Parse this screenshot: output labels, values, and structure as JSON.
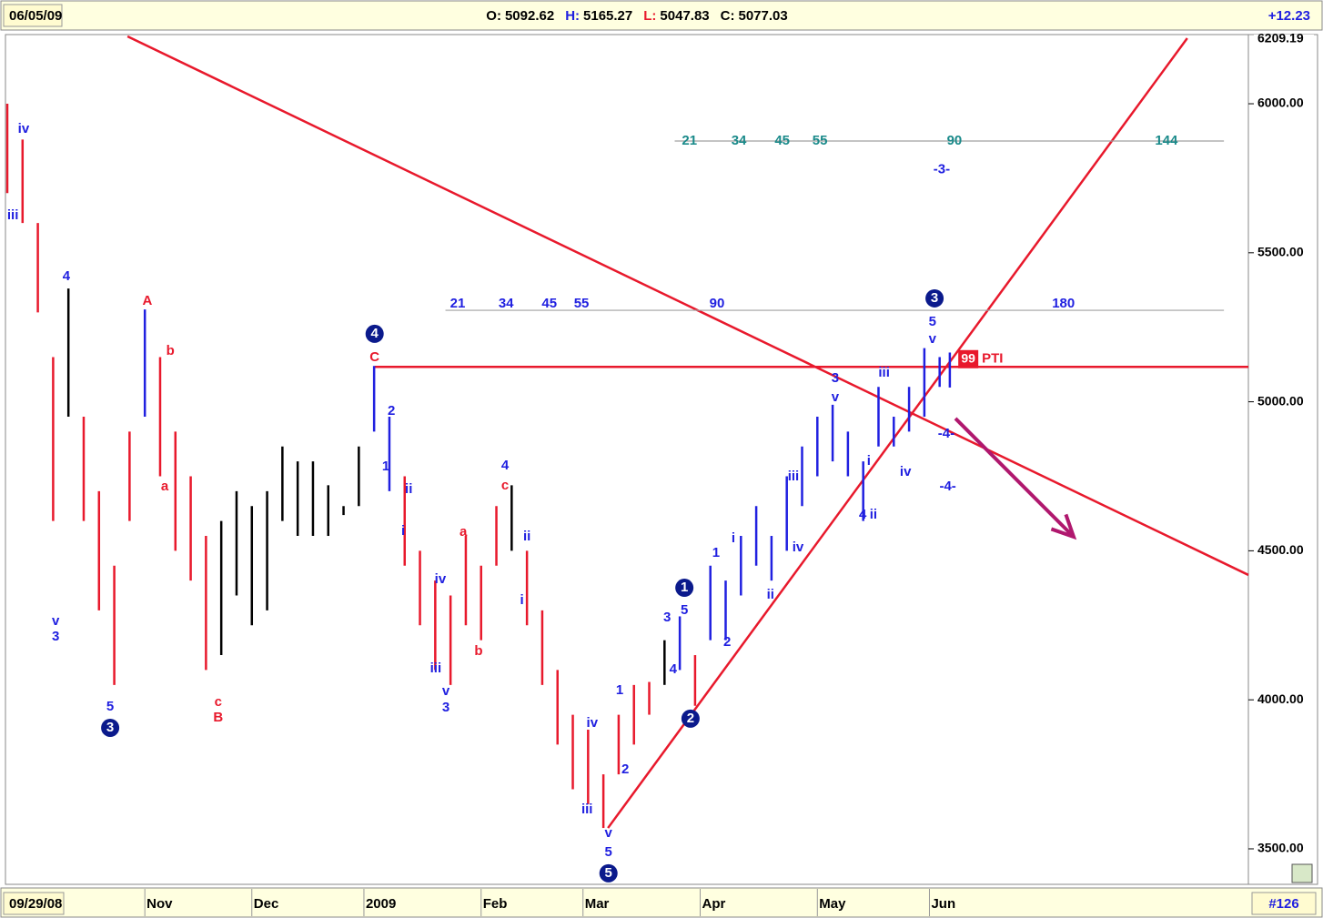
{
  "header": {
    "date": "06/05/09",
    "ohlc": [
      {
        "label": "O:",
        "value": "5092.62"
      },
      {
        "label": "H:",
        "value": "5165.27"
      },
      {
        "label": "L:",
        "value": "5047.83"
      },
      {
        "label": "C:",
        "value": "5077.03"
      }
    ],
    "change": "+12.23"
  },
  "footer": {
    "start_date": "09/29/08",
    "bar_count": "#126"
  },
  "chart_data": {
    "type": "ohlc",
    "last_high_label": "6209.19",
    "x": [
      0,
      3,
      6,
      9,
      12,
      15,
      18,
      21,
      24,
      27,
      30,
      33,
      36,
      39,
      42,
      45,
      48,
      51,
      54,
      57,
      60,
      63,
      66,
      69,
      72,
      75,
      78,
      81,
      84,
      87,
      90,
      93,
      96,
      99,
      102,
      105,
      108,
      111,
      114,
      117,
      120,
      123,
      126,
      129,
      132,
      135,
      138,
      141,
      144,
      147,
      150,
      153,
      156,
      159,
      162,
      165,
      168,
      171,
      174,
      177,
      180,
      183,
      185
    ],
    "high": [
      6000,
      5880,
      5600,
      5150,
      5380,
      4950,
      4700,
      4450,
      4900,
      5310,
      5150,
      4900,
      4750,
      4550,
      4600,
      4700,
      4650,
      4700,
      4850,
      4800,
      4800,
      4720,
      4650,
      4850,
      5120,
      4950,
      4750,
      4500,
      4400,
      4350,
      4550,
      4450,
      4650,
      4720,
      4500,
      4300,
      4100,
      3950,
      3900,
      3750,
      3950,
      4050,
      4060,
      4200,
      4280,
      4150,
      4450,
      4400,
      4550,
      4650,
      4550,
      4750,
      4850,
      4950,
      4990,
      4900,
      4800,
      5050,
      4950,
      5050,
      5180,
      5150,
      5165.27
    ],
    "low": [
      5700,
      5600,
      5300,
      4600,
      4950,
      4600,
      4300,
      4050,
      4600,
      4950,
      4750,
      4500,
      4400,
      4100,
      4150,
      4350,
      4250,
      4300,
      4600,
      4550,
      4550,
      4550,
      4620,
      4650,
      4900,
      4700,
      4450,
      4250,
      4100,
      4050,
      4250,
      4200,
      4450,
      4500,
      4250,
      4050,
      3850,
      3700,
      3650,
      3570,
      3750,
      3850,
      3950,
      4050,
      4100,
      3980,
      4200,
      4200,
      4350,
      4450,
      4400,
      4500,
      4650,
      4750,
      4800,
      4750,
      4600,
      4850,
      4850,
      4900,
      4950,
      5050,
      5047.83
    ],
    "colors": [
      "#e8192c",
      "#e8192c",
      "#e8192c",
      "#e8192c",
      "#000000",
      "#e8192c",
      "#e8192c",
      "#e8192c",
      "#e8192c",
      "#2020e0",
      "#e8192c",
      "#e8192c",
      "#e8192c",
      "#e8192c",
      "#000000",
      "#000000",
      "#000000",
      "#000000",
      "#000000",
      "#000000",
      "#000000",
      "#000000",
      "#000000",
      "#000000",
      "#2020e0",
      "#2020e0",
      "#e8192c",
      "#e8192c",
      "#e8192c",
      "#e8192c",
      "#e8192c",
      "#e8192c",
      "#e8192c",
      "#000000",
      "#e8192c",
      "#e8192c",
      "#e8192c",
      "#e8192c",
      "#e8192c",
      "#e8192c",
      "#e8192c",
      "#e8192c",
      "#e8192c",
      "#000000",
      "#2020e0",
      "#e8192c",
      "#2020e0",
      "#2020e0",
      "#2020e0",
      "#2020e0",
      "#2020e0",
      "#2020e0",
      "#2020e0",
      "#2020e0",
      "#2020e0",
      "#2020e0",
      "#2020e0",
      "#2020e0",
      "#2020e0",
      "#2020e0",
      "#2020e0",
      "#2020e0",
      "#2020e0"
    ],
    "xlim": [
      0,
      243.6
    ],
    "ylim": [
      3387,
      6226
    ],
    "xticks": [
      {
        "value": 27,
        "label": "Nov"
      },
      {
        "value": 48,
        "label": "Dec"
      },
      {
        "value": 70,
        "label": "2009"
      },
      {
        "value": 93,
        "label": "Feb"
      },
      {
        "value": 113,
        "label": "Mar"
      },
      {
        "value": 136,
        "label": "Apr"
      },
      {
        "value": 159,
        "label": "May"
      },
      {
        "value": 181,
        "label": "Jun"
      }
    ],
    "yticks": [
      {
        "value": 3500,
        "label": "3500.00"
      },
      {
        "value": 4000,
        "label": "4000.00"
      },
      {
        "value": 4500,
        "label": "4500.00"
      },
      {
        "value": 5000,
        "label": "5000.00"
      },
      {
        "value": 5500,
        "label": "5500.00"
      },
      {
        "value": 6000,
        "label": "6000.00"
      }
    ],
    "trendlines": [
      {
        "color": "#e8192c",
        "x1": 23.6,
        "v1": 6226,
        "x2": 243.6,
        "v2": 4419
      },
      {
        "color": "#e8192c",
        "x1": 117.9,
        "v1": 3570,
        "x2": 231.6,
        "v2": 6220
      },
      {
        "color": "#e8192c",
        "x1": 72.1,
        "v1": 5117,
        "x2": 243.6,
        "v2": 5117
      },
      {
        "color": "#a0a0a0",
        "x1": 131,
        "v1": 5875,
        "x2": 238.8,
        "v2": 5875
      },
      {
        "color": "#a0a0a0",
        "x1": 86,
        "v1": 5307,
        "x2": 238.8,
        "v2": 5307
      }
    ],
    "arrow": {
      "color": "#b0186e",
      "x1": 186.1,
      "v1": 4944,
      "x2": 209.3,
      "v2": 4547
    },
    "pti": {
      "value": "99",
      "label": "PTI",
      "x": 188.8,
      "v": 5143
    },
    "annotations": [
      {
        "text": "iv",
        "x": 3.2,
        "v": 5915,
        "color": "#2020e0"
      },
      {
        "text": "iii",
        "x": 1.1,
        "v": 5625,
        "color": "#2020e0"
      },
      {
        "text": "4",
        "x": 11.6,
        "v": 5420,
        "color": "#2020e0"
      },
      {
        "text": "v",
        "x": 9.5,
        "v": 4263,
        "color": "#2020e0"
      },
      {
        "text": "3",
        "x": 9.5,
        "v": 4211,
        "color": "#2020e0"
      },
      {
        "text": "5",
        "x": 20.2,
        "v": 3976,
        "color": "#2020e0"
      },
      {
        "text": "3",
        "x": 20.2,
        "v": 3906,
        "color": "#0b1a8c",
        "circled": true
      },
      {
        "text": "A",
        "x": 27.5,
        "v": 5338,
        "color": "#e8192c"
      },
      {
        "text": "b",
        "x": 32,
        "v": 5170,
        "color": "#e8192c"
      },
      {
        "text": "a",
        "x": 30.9,
        "v": 4715,
        "color": "#e8192c"
      },
      {
        "text": "c",
        "x": 41.4,
        "v": 3992,
        "color": "#e8192c"
      },
      {
        "text": "B",
        "x": 41.4,
        "v": 3940,
        "color": "#e8192c"
      },
      {
        "text": "4",
        "x": 72.1,
        "v": 5228,
        "color": "#0b1a8c",
        "circled": true
      },
      {
        "text": "C",
        "x": 72.1,
        "v": 5149,
        "color": "#e8192c"
      },
      {
        "text": "2",
        "x": 75.4,
        "v": 4968,
        "color": "#2020e0"
      },
      {
        "text": "1",
        "x": 74.3,
        "v": 4782,
        "color": "#2020e0"
      },
      {
        "text": "ii",
        "x": 78.8,
        "v": 4706,
        "color": "#2020e0"
      },
      {
        "text": "i",
        "x": 77.7,
        "v": 4565,
        "color": "#2020e0"
      },
      {
        "text": "a",
        "x": 89.5,
        "v": 4562,
        "color": "#e8192c"
      },
      {
        "text": "b",
        "x": 92.5,
        "v": 4163,
        "color": "#e8192c"
      },
      {
        "text": "iv",
        "x": 85,
        "v": 4404,
        "color": "#2020e0"
      },
      {
        "text": "iii",
        "x": 84.1,
        "v": 4104,
        "color": "#2020e0"
      },
      {
        "text": "v",
        "x": 86.1,
        "v": 4028,
        "color": "#2020e0"
      },
      {
        "text": "3",
        "x": 86.1,
        "v": 3973,
        "color": "#2020e0"
      },
      {
        "text": "4",
        "x": 97.7,
        "v": 4785,
        "color": "#2020e0"
      },
      {
        "text": "c",
        "x": 97.7,
        "v": 4718,
        "color": "#e8192c"
      },
      {
        "text": "ii",
        "x": 102,
        "v": 4547,
        "color": "#2020e0"
      },
      {
        "text": "i",
        "x": 101,
        "v": 4333,
        "color": "#2020e0"
      },
      {
        "text": "iv",
        "x": 114.8,
        "v": 3921,
        "color": "#2020e0"
      },
      {
        "text": "iii",
        "x": 113.8,
        "v": 3631,
        "color": "#2020e0"
      },
      {
        "text": "v",
        "x": 118,
        "v": 3552,
        "color": "#2020e0"
      },
      {
        "text": "5",
        "x": 118,
        "v": 3488,
        "color": "#2020e0"
      },
      {
        "text": "5",
        "x": 118,
        "v": 3418,
        "color": "#0b1a8c",
        "circled": true
      },
      {
        "text": "1",
        "x": 120.2,
        "v": 4031,
        "color": "#2020e0"
      },
      {
        "text": "2",
        "x": 121.3,
        "v": 3766,
        "color": "#2020e0"
      },
      {
        "text": "1",
        "x": 132.9,
        "v": 4376,
        "color": "#0b1a8c",
        "circled": true
      },
      {
        "text": "5",
        "x": 132.9,
        "v": 4300,
        "color": "#2020e0"
      },
      {
        "text": "3",
        "x": 129.5,
        "v": 4275,
        "color": "#2020e0"
      },
      {
        "text": "4",
        "x": 130.7,
        "v": 4101,
        "color": "#2020e0"
      },
      {
        "text": "2",
        "x": 134.1,
        "v": 3937,
        "color": "#0b1a8c",
        "circled": true
      },
      {
        "text": "1",
        "x": 139.1,
        "v": 4492,
        "color": "#2020e0"
      },
      {
        "text": "2",
        "x": 141.3,
        "v": 4193,
        "color": "#2020e0"
      },
      {
        "text": "i",
        "x": 142.5,
        "v": 4541,
        "color": "#2020e0"
      },
      {
        "text": "ii",
        "x": 149.8,
        "v": 4352,
        "color": "#2020e0"
      },
      {
        "text": "iii",
        "x": 154.3,
        "v": 4749,
        "color": "#2020e0"
      },
      {
        "text": "iv",
        "x": 155.2,
        "v": 4511,
        "color": "#2020e0"
      },
      {
        "text": "3",
        "x": 162.5,
        "v": 5078,
        "color": "#2020e0"
      },
      {
        "text": "v",
        "x": 162.5,
        "v": 5014,
        "color": "#2020e0"
      },
      {
        "text": "4",
        "x": 167.9,
        "v": 4620,
        "color": "#2020e0"
      },
      {
        "text": "ii",
        "x": 170,
        "v": 4620,
        "color": "#2020e0"
      },
      {
        "text": "i",
        "x": 169.1,
        "v": 4801,
        "color": "#2020e0"
      },
      {
        "text": "iii",
        "x": 172.1,
        "v": 5097,
        "color": "#2020e0"
      },
      {
        "text": "iv",
        "x": 176.3,
        "v": 4764,
        "color": "#2020e0"
      },
      {
        "text": "3",
        "x": 182,
        "v": 5347,
        "color": "#0b1a8c",
        "circled": true
      },
      {
        "text": "5",
        "x": 181.6,
        "v": 5268,
        "color": "#2020e0"
      },
      {
        "text": "v",
        "x": 181.6,
        "v": 5210,
        "color": "#2020e0"
      },
      {
        "text": "-3-",
        "x": 183.4,
        "v": 5778,
        "color": "#2020e0"
      },
      {
        "text": "-4-",
        "x": 184.3,
        "v": 4892,
        "color": "#2020e0"
      },
      {
        "text": "-4-",
        "x": 184.6,
        "v": 4715,
        "color": "#2020e0"
      },
      {
        "text": "21",
        "x": 133.9,
        "v": 5875,
        "color": "#1a8a8a"
      },
      {
        "text": "34",
        "x": 143.6,
        "v": 5875,
        "color": "#1a8a8a"
      },
      {
        "text": "45",
        "x": 152.1,
        "v": 5875,
        "color": "#1a8a8a"
      },
      {
        "text": "55",
        "x": 159.5,
        "v": 5875,
        "color": "#1a8a8a"
      },
      {
        "text": "90",
        "x": 185.9,
        "v": 5875,
        "color": "#1a8a8a"
      },
      {
        "text": "144",
        "x": 227.5,
        "v": 5875,
        "color": "#1a8a8a"
      },
      {
        "text": "21",
        "x": 88.4,
        "v": 5329,
        "color": "#2020e0"
      },
      {
        "text": "34",
        "x": 97.9,
        "v": 5329,
        "color": "#2020e0"
      },
      {
        "text": "45",
        "x": 106.4,
        "v": 5329,
        "color": "#2020e0"
      },
      {
        "text": "55",
        "x": 112.7,
        "v": 5329,
        "color": "#2020e0"
      },
      {
        "text": "90",
        "x": 139.3,
        "v": 5329,
        "color": "#2020e0"
      },
      {
        "text": "180",
        "x": 207.3,
        "v": 5329,
        "color": "#2020e0"
      }
    ]
  }
}
